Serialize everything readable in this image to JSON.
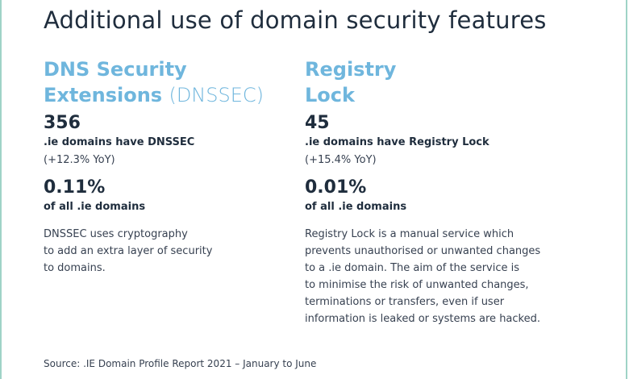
{
  "title": "Additional use of domain security features",
  "left": {
    "heading_line1": "DNS Security",
    "heading_line2": "Extensions",
    "heading_abbr": "(DNSSEC)",
    "count": "356",
    "count_label": ".ie domains have DNSSEC",
    "yoy": "(+12.3% YoY)",
    "share": "0.11%",
    "share_label": "of all .ie domains",
    "description": "DNSSEC uses cryptography\nto add an extra layer of security\nto domains."
  },
  "right": {
    "heading_line1": "Registry",
    "heading_line2": "Lock",
    "count": "45",
    "count_label": ".ie domains have Registry Lock",
    "yoy": "(+15.4% YoY)",
    "share": "0.01%",
    "share_label": "of all .ie domains",
    "description": "Registry Lock is a manual service which\nprevents unauthorised or unwanted changes\nto a .ie domain. The aim of the service is\nto minimise the risk of unwanted changes,\nterminations or transfers, even if user\ninformation is leaked or systems are hacked."
  },
  "source": "Source: .IE Domain Profile Report 2021 – January to June",
  "colors": {
    "accent": "#6fb6dd",
    "text": "#1f2d3d",
    "frame": "#9fd3c7"
  }
}
